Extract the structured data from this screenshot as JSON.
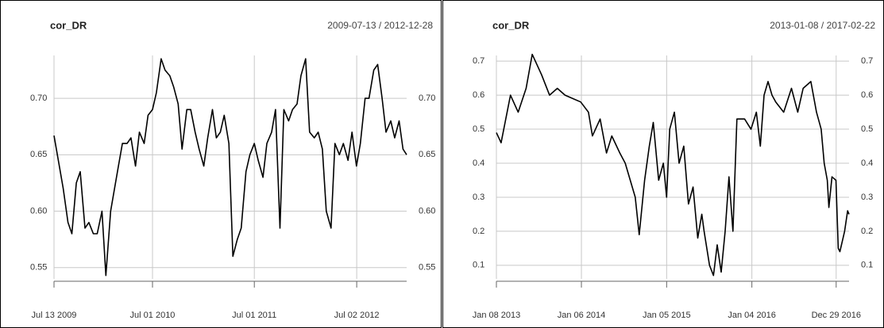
{
  "chart_data": [
    {
      "type": "line",
      "title": "cor_DR",
      "subtitle": "2009-07-13 / 2012-12-28",
      "color": "#000000",
      "grid": true,
      "xlim": [
        "2009-07-13",
        "2012-12-28"
      ],
      "xticks": [
        {
          "value": "2009-07-13",
          "label": "Jul 13 2009"
        },
        {
          "value": "2010-07-01",
          "label": "Jul 01 2010"
        },
        {
          "value": "2011-07-01",
          "label": "Jul 01 2011"
        },
        {
          "value": "2012-07-02",
          "label": "Jul 02 2012"
        }
      ],
      "ylim": [
        0.54,
        0.745
      ],
      "yticks": [
        {
          "value": 0.55,
          "label": "0.55"
        },
        {
          "value": 0.6,
          "label": "0.60"
        },
        {
          "value": 0.65,
          "label": "0.65"
        },
        {
          "value": 0.7,
          "label": "0.70"
        }
      ],
      "x": [
        "2009-07-13",
        "2009-08-01",
        "2009-08-15",
        "2009-09-01",
        "2009-09-15",
        "2009-10-01",
        "2009-10-15",
        "2009-11-01",
        "2009-11-15",
        "2009-12-01",
        "2009-12-15",
        "2010-01-01",
        "2010-01-15",
        "2010-02-01",
        "2010-02-15",
        "2010-03-01",
        "2010-03-15",
        "2010-04-01",
        "2010-04-15",
        "2010-05-01",
        "2010-05-15",
        "2010-06-01",
        "2010-06-15",
        "2010-07-01",
        "2010-07-15",
        "2010-08-01",
        "2010-08-15",
        "2010-09-01",
        "2010-09-15",
        "2010-10-01",
        "2010-10-15",
        "2010-11-01",
        "2010-11-15",
        "2010-12-01",
        "2010-12-15",
        "2011-01-01",
        "2011-01-15",
        "2011-02-01",
        "2011-02-15",
        "2011-03-01",
        "2011-03-15",
        "2011-04-01",
        "2011-04-15",
        "2011-05-01",
        "2011-05-15",
        "2011-06-01",
        "2011-06-15",
        "2011-07-01",
        "2011-07-15",
        "2011-08-01",
        "2011-08-15",
        "2011-09-01",
        "2011-09-15",
        "2011-10-01",
        "2011-10-15",
        "2011-11-01",
        "2011-11-15",
        "2011-12-01",
        "2011-12-15",
        "2012-01-01",
        "2012-01-15",
        "2012-02-01",
        "2012-02-15",
        "2012-03-01",
        "2012-03-15",
        "2012-04-01",
        "2012-04-15",
        "2012-05-01",
        "2012-05-15",
        "2012-06-01",
        "2012-06-15",
        "2012-07-01",
        "2012-07-15",
        "2012-08-01",
        "2012-08-15",
        "2012-09-01",
        "2012-09-15",
        "2012-10-01",
        "2012-10-15",
        "2012-11-01",
        "2012-11-15",
        "2012-12-01",
        "2012-12-15",
        "2012-12-28"
      ],
      "values": [
        0.667,
        0.64,
        0.62,
        0.59,
        0.58,
        0.625,
        0.635,
        0.585,
        0.59,
        0.58,
        0.58,
        0.6,
        0.543,
        0.6,
        0.62,
        0.64,
        0.66,
        0.66,
        0.665,
        0.64,
        0.67,
        0.66,
        0.685,
        0.69,
        0.705,
        0.735,
        0.725,
        0.72,
        0.71,
        0.695,
        0.655,
        0.69,
        0.69,
        0.67,
        0.655,
        0.64,
        0.665,
        0.69,
        0.665,
        0.67,
        0.685,
        0.66,
        0.56,
        0.575,
        0.585,
        0.635,
        0.65,
        0.66,
        0.645,
        0.63,
        0.66,
        0.67,
        0.69,
        0.585,
        0.69,
        0.68,
        0.69,
        0.695,
        0.72,
        0.735,
        0.67,
        0.665,
        0.67,
        0.655,
        0.6,
        0.585,
        0.66,
        0.65,
        0.66,
        0.645,
        0.67,
        0.64,
        0.66,
        0.7,
        0.7,
        0.725,
        0.73,
        0.7,
        0.67,
        0.68,
        0.665,
        0.68,
        0.655,
        0.65
      ]
    },
    {
      "type": "line",
      "title": "cor_DR",
      "subtitle": "2013-01-08 / 2017-02-22",
      "color": "#000000",
      "grid": true,
      "xlim": [
        "2013-01-08",
        "2017-02-22"
      ],
      "xticks": [
        {
          "value": "2013-01-08",
          "label": "Jan 08 2013"
        },
        {
          "value": "2014-01-06",
          "label": "Jan 06 2014"
        },
        {
          "value": "2015-01-05",
          "label": "Jan 05 2015"
        },
        {
          "value": "2016-01-04",
          "label": "Jan 04 2016"
        },
        {
          "value": "2016-12-29",
          "label": "Dec 29 2016"
        }
      ],
      "ylim": [
        0.06,
        0.74
      ],
      "yticks": [
        0.1,
        0.2,
        0.3,
        0.4,
        0.5,
        0.6,
        0.7
      ],
      "x": [
        "2013-01-08",
        "2013-01-28",
        "2013-03-09",
        "2013-04-11",
        "2013-05-15",
        "2013-06-10",
        "2013-07-20",
        "2013-08-23",
        "2013-09-25",
        "2013-10-28",
        "2014-01-03",
        "2014-02-05",
        "2014-02-22",
        "2014-03-27",
        "2014-04-23",
        "2014-05-16",
        "2014-06-19",
        "2014-07-12",
        "2014-08-24",
        "2014-09-10",
        "2014-10-03",
        "2014-10-23",
        "2014-11-09",
        "2014-12-02",
        "2014-12-22",
        "2015-01-05",
        "2015-01-18",
        "2015-02-07",
        "2015-02-27",
        "2015-03-19",
        "2015-04-08",
        "2015-04-28",
        "2015-05-18",
        "2015-06-04",
        "2015-06-14",
        "2015-07-07",
        "2015-07-24",
        "2015-08-09",
        "2015-08-26",
        "2015-09-12",
        "2015-09-28",
        "2015-10-15",
        "2015-11-01",
        "2015-12-04",
        "2015-12-31",
        "2016-01-23",
        "2016-02-09",
        "2016-02-25",
        "2016-03-13",
        "2016-03-30",
        "2016-04-15",
        "2016-05-19",
        "2016-06-21",
        "2016-07-18",
        "2016-08-10",
        "2016-09-12",
        "2016-10-06",
        "2016-10-26",
        "2016-11-08",
        "2016-11-21",
        "2016-11-28",
        "2016-12-11",
        "2016-12-28",
        "2017-01-07",
        "2017-01-14",
        "2017-02-03",
        "2017-02-16",
        "2017-02-22"
      ],
      "values": [
        0.49,
        0.46,
        0.6,
        0.55,
        0.62,
        0.72,
        0.66,
        0.6,
        0.62,
        0.6,
        0.58,
        0.55,
        0.48,
        0.53,
        0.43,
        0.48,
        0.43,
        0.4,
        0.3,
        0.19,
        0.35,
        0.45,
        0.52,
        0.35,
        0.4,
        0.3,
        0.5,
        0.55,
        0.4,
        0.45,
        0.28,
        0.33,
        0.18,
        0.25,
        0.2,
        0.1,
        0.07,
        0.16,
        0.08,
        0.2,
        0.36,
        0.2,
        0.53,
        0.53,
        0.5,
        0.55,
        0.45,
        0.6,
        0.64,
        0.6,
        0.58,
        0.55,
        0.62,
        0.55,
        0.62,
        0.64,
        0.55,
        0.5,
        0.4,
        0.35,
        0.27,
        0.36,
        0.35,
        0.15,
        0.14,
        0.2,
        0.26,
        0.25
      ]
    }
  ]
}
